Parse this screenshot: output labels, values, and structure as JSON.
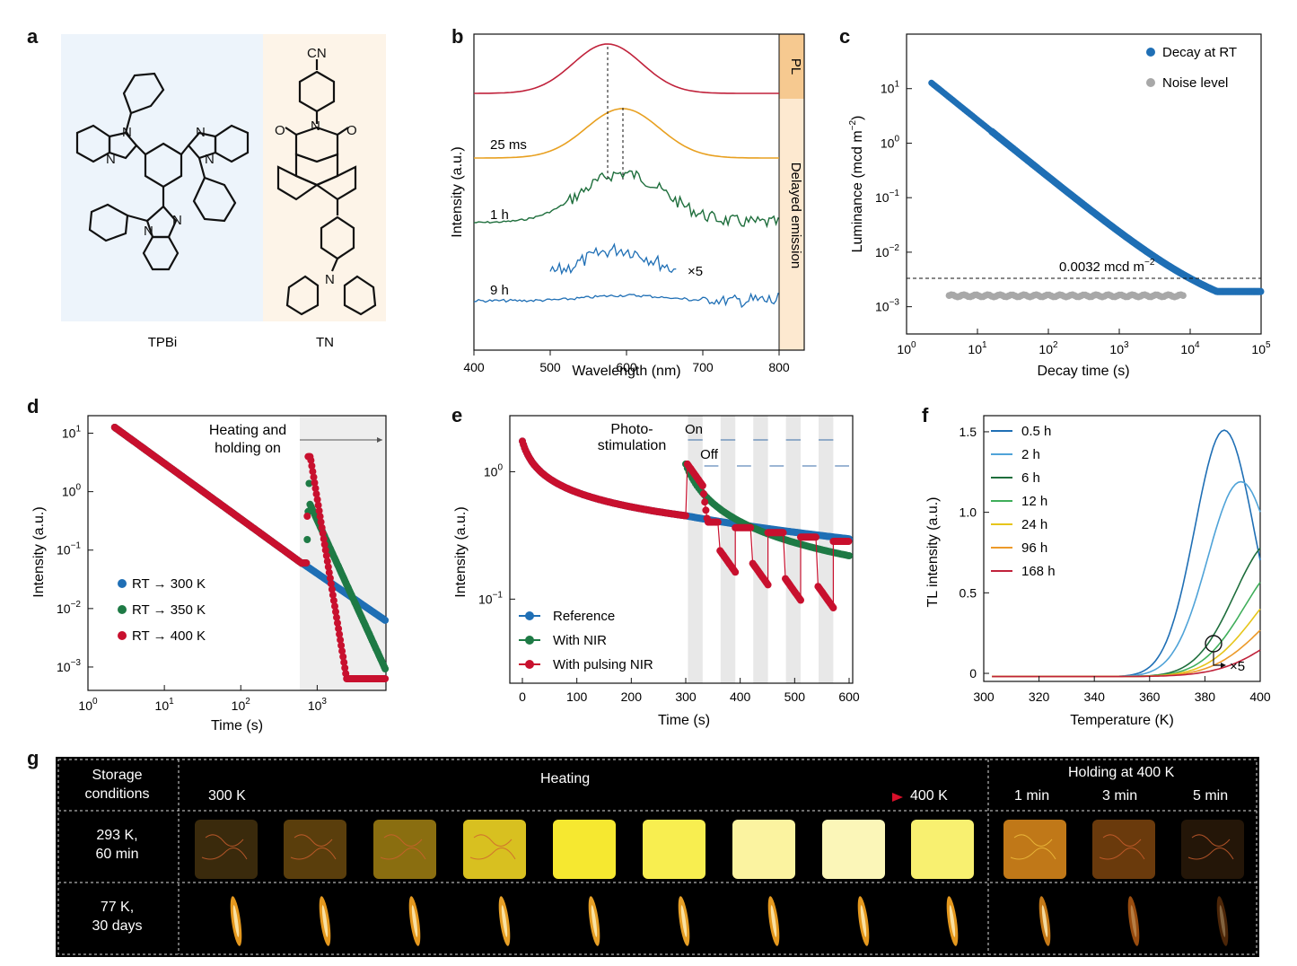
{
  "panel_labels": [
    "a",
    "b",
    "c",
    "d",
    "e",
    "f",
    "g"
  ],
  "panel_a": {
    "molecules": [
      {
        "name": "TPBi",
        "bg": "#edf4fb"
      },
      {
        "name": "TN",
        "bg": "#fdf4e8",
        "substituent": "CN"
      }
    ]
  },
  "panel_b": {
    "xlabel": "Wavelength (nm)",
    "ylabel": "Intensity (a.u.)",
    "xticks": [
      "400",
      "500",
      "600",
      "700",
      "800"
    ],
    "xlim": [
      400,
      800
    ],
    "side_labels": {
      "pl": "PL",
      "delayed": "Delayed emission"
    },
    "curve_labels": [
      "25 ms",
      "1 h",
      "9 h"
    ],
    "multiplier": "×5",
    "colors": {
      "pl": "#c0223b",
      "ms25": "#e8a020",
      "h1": "#1e6e3c",
      "h9": "#1f6fb5"
    }
  },
  "panel_c": {
    "xlabel": "Decay time (s)",
    "ylabel": "Luminance (mcd m",
    "ylabel_sup": "−2",
    "xticks": [
      "10",
      "10",
      "10",
      "10",
      "10",
      "10"
    ],
    "xtick_exp": [
      "0",
      "1",
      "2",
      "3",
      "4",
      "5"
    ],
    "yticks": [
      "10",
      "10",
      "10",
      "10",
      "10"
    ],
    "ytick_exp": [
      "−3",
      "−2",
      "−1",
      "0",
      "1"
    ],
    "legend": [
      "Decay at RT",
      "Noise level"
    ],
    "annotation": "0.0032 mcd m",
    "annotation_sup": "−2",
    "colors": {
      "decay": "#1f6fb5",
      "noise": "#a8a8a8"
    }
  },
  "panel_d": {
    "xlabel": "Time (s)",
    "ylabel": "Intensity (a.u.)",
    "xticks": [
      "10",
      "10",
      "10",
      "10"
    ],
    "xtick_exp": [
      "0",
      "1",
      "2",
      "3"
    ],
    "yticks": [
      "10",
      "10",
      "10",
      "10",
      "10"
    ],
    "ytick_exp": [
      "−3",
      "−2",
      "−1",
      "0",
      "1"
    ],
    "annotation": [
      "Heating and",
      "holding on"
    ],
    "legend": [
      "RT → 300 K",
      "RT → 350 K",
      "RT → 400 K"
    ],
    "colors": [
      "#1f6fb5",
      "#1e7a45",
      "#c8102e"
    ]
  },
  "panel_e": {
    "xlabel": "Time (s)",
    "ylabel": "Intensity (a.u.)",
    "xticks": [
      "0",
      "100",
      "200",
      "300",
      "400",
      "500",
      "600"
    ],
    "xlim": [
      0,
      600
    ],
    "yticks": [
      "10",
      "10"
    ],
    "ytick_exp": [
      "−1",
      "0"
    ],
    "annotation": [
      "Photo-",
      "stimulation"
    ],
    "on": "On",
    "off": "Off",
    "legend": [
      "Reference",
      "With NIR",
      "With pulsing NIR"
    ],
    "colors": [
      "#1f6fb5",
      "#1e7a45",
      "#c8102e"
    ]
  },
  "panel_f": {
    "xlabel": "Temperature (K)",
    "ylabel": "TL intensity (a.u.)",
    "xticks": [
      "300",
      "320",
      "340",
      "360",
      "380",
      "400"
    ],
    "xlim": [
      300,
      400
    ],
    "yticks": [
      "0",
      "0.5",
      "1.0",
      "1.5"
    ],
    "ylim": [
      -0.05,
      1.6
    ],
    "legend": [
      "0.5 h",
      "2 h",
      "6 h",
      "12 h",
      "24 h",
      "96 h",
      "168 h"
    ],
    "colors": [
      "#1f6fb5",
      "#4fa3d8",
      "#1e6e3c",
      "#3fae5a",
      "#e6c51a",
      "#ec9a2a",
      "#c0223b"
    ],
    "multiplier": "×5"
  },
  "panel_g": {
    "storage_header": [
      "Storage",
      "conditions"
    ],
    "heating": "Heating",
    "from": "300 K",
    "to": "400 K",
    "holding": "Holding at 400 K",
    "times": [
      "1 min",
      "3 min",
      "5 min"
    ],
    "rows": [
      [
        "293 K,",
        "60 min"
      ],
      [
        "77 K,",
        "30 days"
      ]
    ],
    "square_colors": [
      "#3a2a0c",
      "#5a3e0c",
      "#8a6e10",
      "#d8c020",
      "#f6e830",
      "#f8ee50",
      "#fbf3a0",
      "#fbf6b8",
      "#f8f070",
      "#c07818",
      "#6a3a0c",
      "#241608"
    ],
    "flame_colors": [
      "#f0a020",
      "#f0a020",
      "#f0a020",
      "#f2a828",
      "#f2a828",
      "#f2a828",
      "#f0a020",
      "#f0a020",
      "#f0a020",
      "#d08018",
      "#a05010",
      "#502808"
    ]
  }
}
